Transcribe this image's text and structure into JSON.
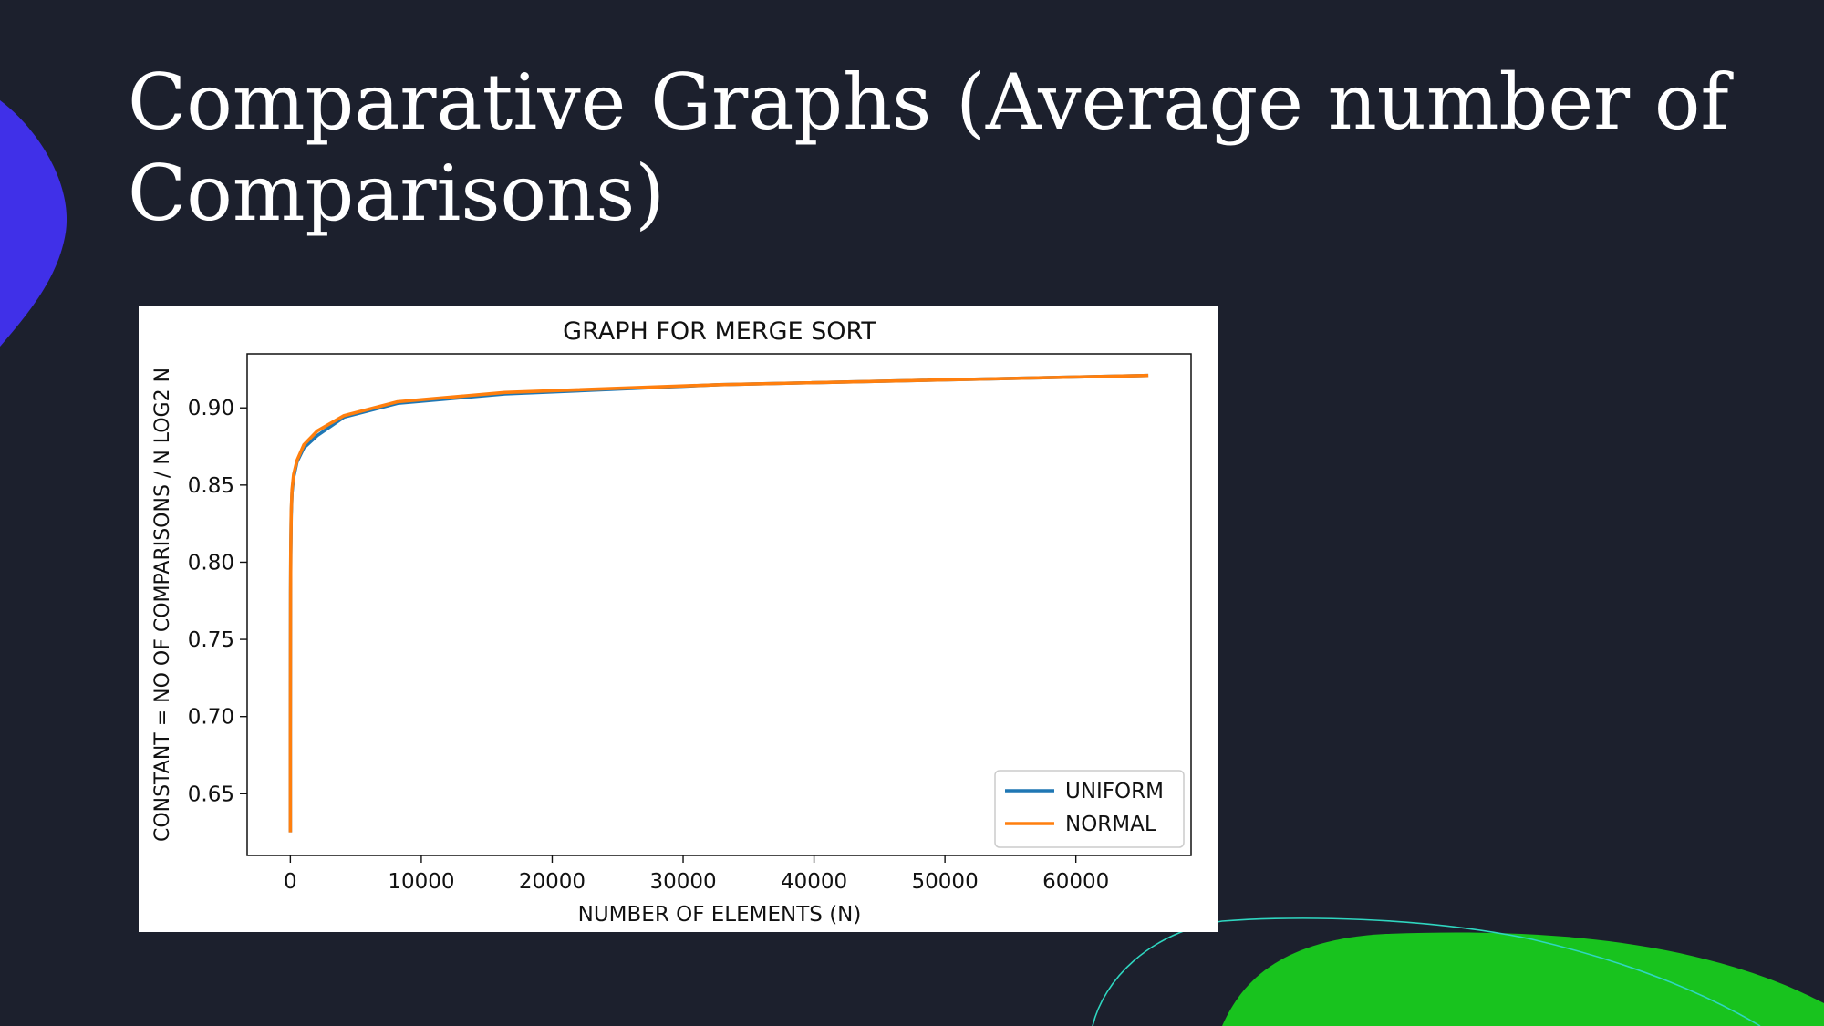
{
  "slide": {
    "title": "Comparative Graphs (Average number of Comparisons)"
  },
  "colors": {
    "background": "#1c202d",
    "accent_blue": "#4030e8",
    "accent_green": "#18c31e",
    "accent_teal": "#2fd6c0"
  },
  "chart_data": {
    "type": "line",
    "title": "GRAPH FOR MERGE SORT",
    "xlabel": "NUMBER OF ELEMENTS (N)",
    "ylabel": "CONSTANT = NO OF COMPARISONS / N LOG2 N",
    "xlim": [
      -3300,
      68800
    ],
    "ylim": [
      0.61,
      0.935
    ],
    "xticks": [
      0,
      10000,
      20000,
      30000,
      40000,
      50000,
      60000
    ],
    "xtick_labels": [
      "0",
      "10000",
      "20000",
      "30000",
      "40000",
      "50000",
      "60000"
    ],
    "yticks": [
      0.65,
      0.7,
      0.75,
      0.8,
      0.85,
      0.9
    ],
    "ytick_labels": [
      "0.65",
      "0.70",
      "0.75",
      "0.80",
      "0.85",
      "0.90"
    ],
    "legend_position": "lower-right",
    "grid": false,
    "series": [
      {
        "name": "UNIFORM",
        "color": "#1f77b4",
        "x": [
          2,
          4,
          8,
          16,
          32,
          64,
          128,
          256,
          512,
          1024,
          2048,
          4096,
          8192,
          16384,
          32768,
          65536
        ],
        "y": [
          0.625,
          0.69,
          0.74,
          0.78,
          0.805,
          0.83,
          0.845,
          0.855,
          0.865,
          0.874,
          0.882,
          0.894,
          0.903,
          0.909,
          0.915,
          0.921
        ]
      },
      {
        "name": "NORMAL",
        "color": "#ff7f0e",
        "x": [
          2,
          4,
          8,
          16,
          32,
          64,
          128,
          256,
          512,
          1024,
          2048,
          4096,
          8192,
          16384,
          32768,
          65536
        ],
        "y": [
          0.625,
          0.69,
          0.74,
          0.78,
          0.806,
          0.832,
          0.847,
          0.857,
          0.866,
          0.876,
          0.885,
          0.895,
          0.904,
          0.91,
          0.915,
          0.921
        ]
      }
    ]
  }
}
